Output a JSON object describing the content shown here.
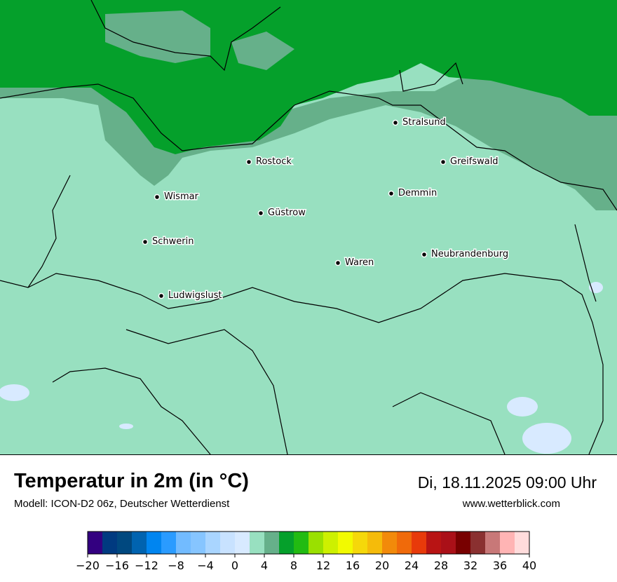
{
  "header": {
    "title": "Temperatur in 2m (in °C)",
    "model": "Modell: ICON-D2 06z, Deutscher Wetterdienst",
    "datetime": "Di, 18.11.2025 09:00 Uhr",
    "website": "www.wetterblick.com"
  },
  "map": {
    "cities": [
      {
        "name": "Stralsund"
      },
      {
        "name": "Rostock"
      },
      {
        "name": "Greifswald"
      },
      {
        "name": "Wismar"
      },
      {
        "name": "Demmin"
      },
      {
        "name": "Güstrow"
      },
      {
        "name": "Schwerin"
      },
      {
        "name": "Neubrandenburg"
      },
      {
        "name": "Waren"
      },
      {
        "name": "Ludwigslust"
      }
    ],
    "colors": {
      "land_main": "#98e0c0",
      "coast_band": "#66b08a",
      "sea": "#05a02b",
      "cold_patch": "#d8eaff"
    }
  },
  "colorbar": {
    "min": -20,
    "max": 40,
    "step": 2,
    "tick_labels": [
      "−20",
      "−16",
      "−12",
      "−8",
      "−4",
      "0",
      "4",
      "8",
      "12",
      "16",
      "20",
      "24",
      "28",
      "32",
      "36",
      "40"
    ],
    "colors": [
      "#330080",
      "#003a80",
      "#00487f",
      "#0063b0",
      "#0085f0",
      "#2a9bff",
      "#72bbff",
      "#86c5ff",
      "#a9d5ff",
      "#c8e2ff",
      "#d8eaff",
      "#98e0c0",
      "#66b08a",
      "#05a02b",
      "#22bb12",
      "#9ae000",
      "#cdf000",
      "#f2fa00",
      "#f5d80a",
      "#f5bb0a",
      "#f28a0a",
      "#f06a0a",
      "#e83a0a",
      "#b81414",
      "#aa1018",
      "#780000",
      "#8a3030",
      "#c87878",
      "#ffb4b4",
      "#ffdcdc"
    ]
  }
}
